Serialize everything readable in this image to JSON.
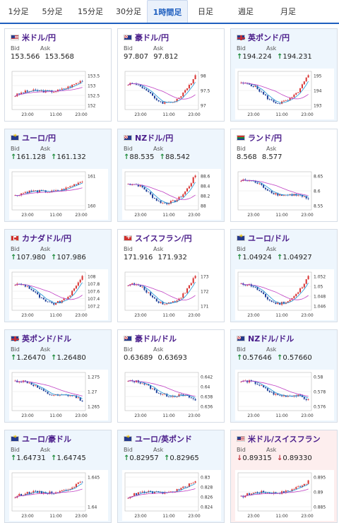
{
  "tabs": [
    {
      "label": "1分足",
      "active": false
    },
    {
      "label": "5分足",
      "active": false
    },
    {
      "label": "15分足",
      "active": false
    },
    {
      "label": "30分足",
      "active": false
    },
    {
      "label": "1時間足",
      "active": true
    },
    {
      "label": "日足",
      "active": false
    },
    {
      "label": "週足",
      "active": false
    },
    {
      "label": "月足",
      "active": false
    }
  ],
  "labels": {
    "bid": "Bid",
    "ask": "Ask"
  },
  "colors": {
    "up": "#1d8a3a",
    "down": "#c0303a",
    "candle_up": "#d8302f",
    "candle_down": "#1d3f9a",
    "ma_fast": "#1c93d4",
    "ma_slow": "#c041c4",
    "title": "#4a1d8a",
    "active_tab": "#1f5fbf"
  },
  "cards": [
    {
      "pair": "米ドル/円",
      "flag": "us-flag-icon",
      "bg": "plain",
      "bid_dir": "",
      "bid": "153.566",
      "ask_dir": "",
      "ask": "153.568",
      "y_ticks": [
        "153.5",
        "153",
        "152.5",
        "152"
      ],
      "x_ticks": [
        "23:00",
        "11:00",
        "23:00"
      ],
      "trend": "up"
    },
    {
      "pair": "豪ドル/円",
      "flag": "au-flag-icon",
      "bg": "plain",
      "bid_dir": "",
      "bid": "97.807",
      "ask_dir": "",
      "ask": "97.812",
      "y_ticks": [
        "98",
        "97.5",
        "97"
      ],
      "x_ticks": [
        "23:00",
        "11:00",
        "23:00"
      ],
      "trend": "vup"
    },
    {
      "pair": "英ポンド/円",
      "flag": "gb-flag-icon",
      "bg": "tint",
      "bid_dir": "↑",
      "bid": "194.224",
      "ask_dir": "↑",
      "ask": "194.231",
      "y_ticks": [
        "195",
        "194",
        "193"
      ],
      "x_ticks": [
        "23:00",
        "11:00",
        "23:00"
      ],
      "trend": "vup"
    },
    {
      "pair": "ユーロ/円",
      "flag": "eu-flag-icon",
      "bg": "tint",
      "bid_dir": "↑",
      "bid": "161.128",
      "ask_dir": "↑",
      "ask": "161.132",
      "y_ticks": [
        "161",
        "160"
      ],
      "x_ticks": [
        "23:00",
        "11:00",
        "23:00"
      ],
      "trend": "up"
    },
    {
      "pair": "NZドル/円",
      "flag": "nz-flag-icon",
      "bg": "tint",
      "bid_dir": "↑",
      "bid": "88.535",
      "ask_dir": "↑",
      "ask": "88.542",
      "y_ticks": [
        "88.6",
        "88.4",
        "88.2",
        "88"
      ],
      "x_ticks": [
        "23:00",
        "11:00",
        "23:00"
      ],
      "trend": "vup"
    },
    {
      "pair": "ランド/円",
      "flag": "za-flag-icon",
      "bg": "plain",
      "bid_dir": "",
      "bid": "8.568",
      "ask_dir": "",
      "ask": "8.577",
      "y_ticks": [
        "8.65",
        "8.6",
        "8.55"
      ],
      "x_ticks": [
        "23:00",
        "11:00",
        "23:00"
      ],
      "trend": "down"
    },
    {
      "pair": "カナダドル/円",
      "flag": "ca-flag-icon",
      "bg": "tint",
      "bid_dir": "↑",
      "bid": "107.980",
      "ask_dir": "↑",
      "ask": "107.986",
      "y_ticks": [
        "108",
        "107.8",
        "107.6",
        "107.4",
        "107.2"
      ],
      "x_ticks": [
        "23:00",
        "11:00",
        "23:00"
      ],
      "trend": "vup"
    },
    {
      "pair": "スイスフラン/円",
      "flag": "ch-flag-icon",
      "bg": "plain",
      "bid_dir": "",
      "bid": "171.916",
      "ask_dir": "",
      "ask": "171.932",
      "y_ticks": [
        "173",
        "172",
        "171"
      ],
      "x_ticks": [
        "23:00",
        "11:00",
        "23:00"
      ],
      "trend": "vup"
    },
    {
      "pair": "ユーロ/ドル",
      "flag": "eu-flag-icon",
      "bg": "tint",
      "bid_dir": "↑",
      "bid": "1.04924",
      "ask_dir": "↑",
      "ask": "1.04927",
      "y_ticks": [
        "1.052",
        "1.05",
        "1.048",
        "1.046"
      ],
      "x_ticks": [
        "23:00",
        "11:00",
        "23:00"
      ],
      "trend": "vup"
    },
    {
      "pair": "英ポンド/ドル",
      "flag": "gb-flag-icon",
      "bg": "tint",
      "bid_dir": "↑",
      "bid": "1.26470",
      "ask_dir": "↑",
      "ask": "1.26480",
      "y_ticks": [
        "1.275",
        "1.27",
        "1.265"
      ],
      "x_ticks": [
        "23:00",
        "11:00",
        "23:00"
      ],
      "trend": "down"
    },
    {
      "pair": "豪ドル/ドル",
      "flag": "au-flag-icon",
      "bg": "plain",
      "bid_dir": "",
      "bid": "0.63689",
      "ask_dir": "",
      "ask": "0.63693",
      "y_ticks": [
        "0.642",
        "0.64",
        "0.638",
        "0.636"
      ],
      "x_ticks": [
        "23:00",
        "11:00",
        "23:00"
      ],
      "trend": "down"
    },
    {
      "pair": "NZドル/ドル",
      "flag": "nz-flag-icon",
      "bg": "tint",
      "bid_dir": "↑",
      "bid": "0.57646",
      "ask_dir": "↑",
      "ask": "0.57660",
      "y_ticks": [
        "0.58",
        "0.578",
        "0.576"
      ],
      "x_ticks": [
        "23:00",
        "11:00",
        "23:00"
      ],
      "trend": "down"
    },
    {
      "pair": "ユーロ/豪ドル",
      "flag": "eu-flag-icon",
      "bg": "tint",
      "bid_dir": "↑",
      "bid": "1.64731",
      "ask_dir": "↑",
      "ask": "1.64745",
      "y_ticks": [
        "1.645",
        "1.64"
      ],
      "x_ticks": [
        "23:00",
        "11:00",
        "23:00"
      ],
      "trend": "up"
    },
    {
      "pair": "ユーロ/英ポンド",
      "flag": "eu-flag-icon",
      "bg": "tint",
      "bid_dir": "↑",
      "bid": "0.82957",
      "ask_dir": "↑",
      "ask": "0.82965",
      "y_ticks": [
        "0.83",
        "0.828",
        "0.826",
        "0.824"
      ],
      "x_ticks": [
        "23:00",
        "11:00",
        "23:00"
      ],
      "trend": "up"
    },
    {
      "pair": "米ドル/スイスフラン",
      "flag": "us-flag-icon",
      "bg": "warn",
      "bid_dir": "↓",
      "bid": "0.89315",
      "ask_dir": "↓",
      "ask": "0.89330",
      "y_ticks": [
        "0.895",
        "0.89",
        "0.885"
      ],
      "x_ticks": [
        "23:00",
        "11:00",
        "23:00"
      ],
      "trend": "up"
    }
  ]
}
